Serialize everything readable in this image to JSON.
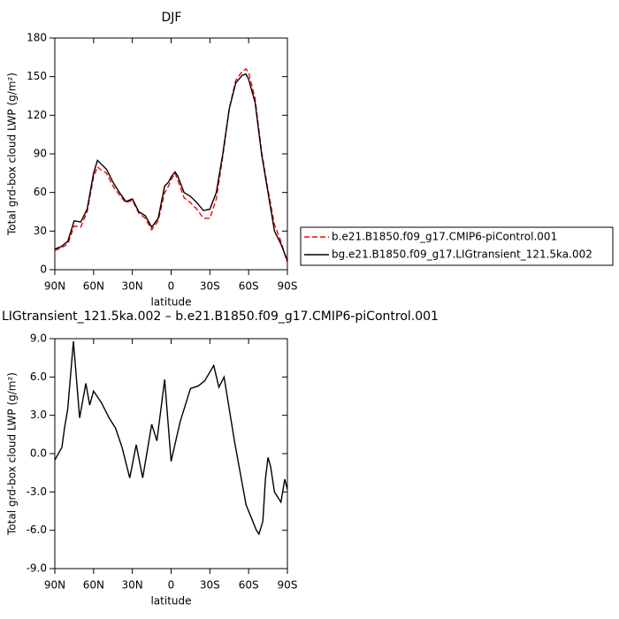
{
  "chart_data": [
    {
      "type": "line",
      "title": "DJF",
      "ylabel": "Total grd-box cloud LWP (g/m²)",
      "xlabel": "latitude",
      "xlim": [
        90,
        -90
      ],
      "ylim": [
        0,
        180
      ],
      "xticks": [
        {
          "value": 90,
          "label": "90N"
        },
        {
          "value": 60,
          "label": "60N"
        },
        {
          "value": 30,
          "label": "30N"
        },
        0,
        {
          "value": -30,
          "label": "30S"
        },
        {
          "value": -60,
          "label": "60S"
        },
        {
          "value": -90,
          "label": "90S"
        }
      ],
      "yticks": [
        0,
        30,
        60,
        90,
        120,
        150,
        180
      ],
      "legend": "right",
      "x": [
        90,
        85,
        80,
        75,
        70,
        65,
        60,
        57,
        55,
        50,
        45,
        40,
        35,
        30,
        25,
        20,
        15,
        10,
        5,
        2,
        0,
        -3,
        -5,
        -10,
        -15,
        -20,
        -25,
        -30,
        -35,
        -40,
        -45,
        -50,
        -55,
        -58,
        -60,
        -65,
        -70,
        -75,
        -80,
        -85,
        -90
      ],
      "series": [
        {
          "name": "b.e21.B1850.f09_g17.CMIP6-piControl.001",
          "color": "#ff0000",
          "dashed": true,
          "values": [
            15,
            17,
            20,
            34,
            33,
            45,
            72,
            80,
            78,
            75,
            65,
            58,
            52,
            54,
            44,
            40,
            31,
            38,
            60,
            65,
            70,
            75,
            70,
            56,
            52,
            47,
            40,
            40,
            55,
            88,
            125,
            147,
            154,
            156,
            153,
            133,
            92,
            62,
            35,
            22,
            5
          ]
        },
        {
          "name": "bg.e21.B1850.f09_g17.LIGtransient_121.5ka.002",
          "color": "#000000",
          "dashed": false,
          "values": [
            16,
            18,
            22,
            38,
            37,
            47,
            75,
            85,
            83,
            78,
            68,
            60,
            53,
            55,
            45,
            42,
            33,
            40,
            65,
            68,
            72,
            76,
            73,
            60,
            57,
            52,
            46,
            47,
            60,
            90,
            125,
            145,
            151,
            152,
            148,
            130,
            90,
            60,
            30,
            20,
            7
          ]
        }
      ]
    },
    {
      "type": "line",
      "title": "LIGtransient_121.5ka.002 – b.e21.B1850.f09_g17.CMIP6-piControl.001",
      "ylabel": "Total grd-box cloud LWP (g/m²)",
      "xlabel": "latitude",
      "xlim": [
        90,
        -90
      ],
      "ylim": [
        -9,
        9
      ],
      "xticks": [
        {
          "value": 90,
          "label": "90N"
        },
        {
          "value": 60,
          "label": "60N"
        },
        {
          "value": 30,
          "label": "30N"
        },
        0,
        {
          "value": -30,
          "label": "30S"
        },
        {
          "value": -60,
          "label": "60S"
        },
        {
          "value": -90,
          "label": "90S"
        }
      ],
      "yticks": [
        {
          "value": 9,
          "label": "9.0"
        },
        {
          "value": 6,
          "label": "6.0"
        },
        {
          "value": 3,
          "label": "3.0"
        },
        {
          "value": 0,
          "label": "0.0"
        },
        {
          "value": -3,
          "label": "-3.0"
        },
        {
          "value": -6,
          "label": "-6.0"
        },
        {
          "value": -9,
          "label": "-9.0"
        }
      ],
      "x": [
        90,
        84.5,
        82.5,
        80,
        75.6,
        70.8,
        66,
        63,
        60,
        54,
        48,
        43,
        38,
        32,
        27,
        22,
        15,
        11,
        5,
        0,
        -7,
        -15,
        -21,
        -26,
        -33,
        -37,
        -41,
        -49,
        -58,
        -66,
        -68,
        -71,
        -73,
        -75,
        -77,
        -80,
        -85,
        -88,
        -90
      ],
      "series": [
        {
          "color": "#000000",
          "dashed": false,
          "values": [
            -0.5,
            0.5,
            2.0,
            3.5,
            8.8,
            2.8,
            5.5,
            3.8,
            4.9,
            4.0,
            2.8,
            2.0,
            0.5,
            -1.9,
            0.7,
            -1.9,
            2.3,
            1.0,
            5.8,
            -0.6,
            2.5,
            5.1,
            5.3,
            5.7,
            6.9,
            5.2,
            6.0,
            1.0,
            -4.0,
            -6.0,
            -6.3,
            -5.3,
            -2.0,
            -0.3,
            -1.0,
            -3.0,
            -3.8,
            -2.0,
            -2.8
          ]
        }
      ]
    }
  ]
}
